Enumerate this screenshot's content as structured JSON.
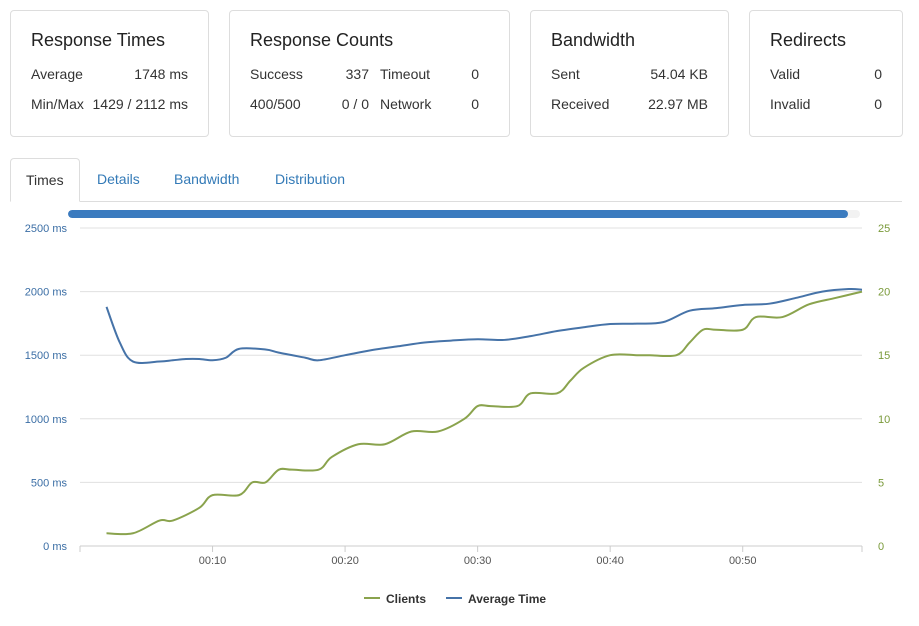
{
  "cards": {
    "response_times": {
      "title": "Response Times",
      "average_label": "Average",
      "average_value": "1748 ms",
      "minmax_label": "Min/Max",
      "minmax_value": "1429 / 2112 ms"
    },
    "response_counts": {
      "title": "Response Counts",
      "success_label": "Success",
      "success_value": "337",
      "timeout_label": "Timeout",
      "timeout_value": "0",
      "errors_label": "400/500",
      "errors_value": "0 / 0",
      "network_label": "Network",
      "network_value": "0"
    },
    "bandwidth": {
      "title": "Bandwidth",
      "sent_label": "Sent",
      "sent_value": "54.04 KB",
      "received_label": "Received",
      "received_value": "22.97 MB"
    },
    "redirects": {
      "title": "Redirects",
      "valid_label": "Valid",
      "valid_value": "0",
      "invalid_label": "Invalid",
      "invalid_value": "0"
    }
  },
  "tabs": [
    {
      "label": "Times",
      "active": true
    },
    {
      "label": "Details",
      "active": false
    },
    {
      "label": "Bandwidth",
      "active": false
    },
    {
      "label": "Distribution",
      "active": false
    }
  ],
  "progress": {
    "fraction": 0.985,
    "color": "#3b7bbf"
  },
  "chart_data": {
    "type": "line",
    "title": "",
    "xlabel": "",
    "ylabel": "",
    "x_ticks": [
      "00:10",
      "00:20",
      "00:30",
      "00:40",
      "00:50"
    ],
    "y_left_ticks": [
      "0 ms",
      "500 ms",
      "1000 ms",
      "1500 ms",
      "2000 ms",
      "2500 ms"
    ],
    "y_right_ticks": [
      "0",
      "5",
      "10",
      "15",
      "20",
      "25"
    ],
    "xlim": [
      0,
      59
    ],
    "ylim_left": [
      0,
      2500
    ],
    "ylim_right": [
      0,
      25
    ],
    "grid": true,
    "legend_placement": "bottom-center",
    "series": [
      {
        "name": "Clients",
        "axis": "right",
        "color": "#8aa34d",
        "x": [
          2,
          4,
          6,
          7,
          9,
          10,
          12,
          13,
          14,
          15,
          16,
          18,
          19,
          21,
          23,
          25,
          27,
          29,
          30,
          31,
          33,
          34,
          36,
          37,
          38,
          40,
          42,
          43,
          45,
          46,
          47,
          48,
          50,
          51,
          53,
          55,
          57,
          59
        ],
        "values": [
          1,
          1,
          2,
          2,
          3,
          4,
          4,
          5,
          5,
          6,
          6,
          6,
          7,
          8,
          8,
          9,
          9,
          10,
          11,
          11,
          11,
          12,
          12,
          13,
          14,
          15,
          15,
          15,
          15,
          16,
          17,
          17,
          17,
          18,
          18,
          19,
          19.5,
          20
        ]
      },
      {
        "name": "Average Time",
        "axis": "left",
        "color": "#4673a8",
        "x": [
          2,
          3,
          4,
          6,
          7,
          8,
          9,
          10,
          11,
          12,
          14,
          15,
          17,
          18,
          20,
          22,
          24,
          26,
          28,
          30,
          32,
          34,
          36,
          38,
          40,
          42,
          44,
          46,
          48,
          50,
          52,
          54,
          56,
          58,
          59
        ],
        "values": [
          1880,
          1600,
          1450,
          1450,
          1460,
          1470,
          1470,
          1460,
          1480,
          1550,
          1545,
          1520,
          1480,
          1460,
          1500,
          1540,
          1570,
          1600,
          1615,
          1625,
          1620,
          1650,
          1690,
          1720,
          1745,
          1748,
          1760,
          1850,
          1870,
          1895,
          1905,
          1950,
          2000,
          2020,
          2015
        ]
      }
    ]
  }
}
